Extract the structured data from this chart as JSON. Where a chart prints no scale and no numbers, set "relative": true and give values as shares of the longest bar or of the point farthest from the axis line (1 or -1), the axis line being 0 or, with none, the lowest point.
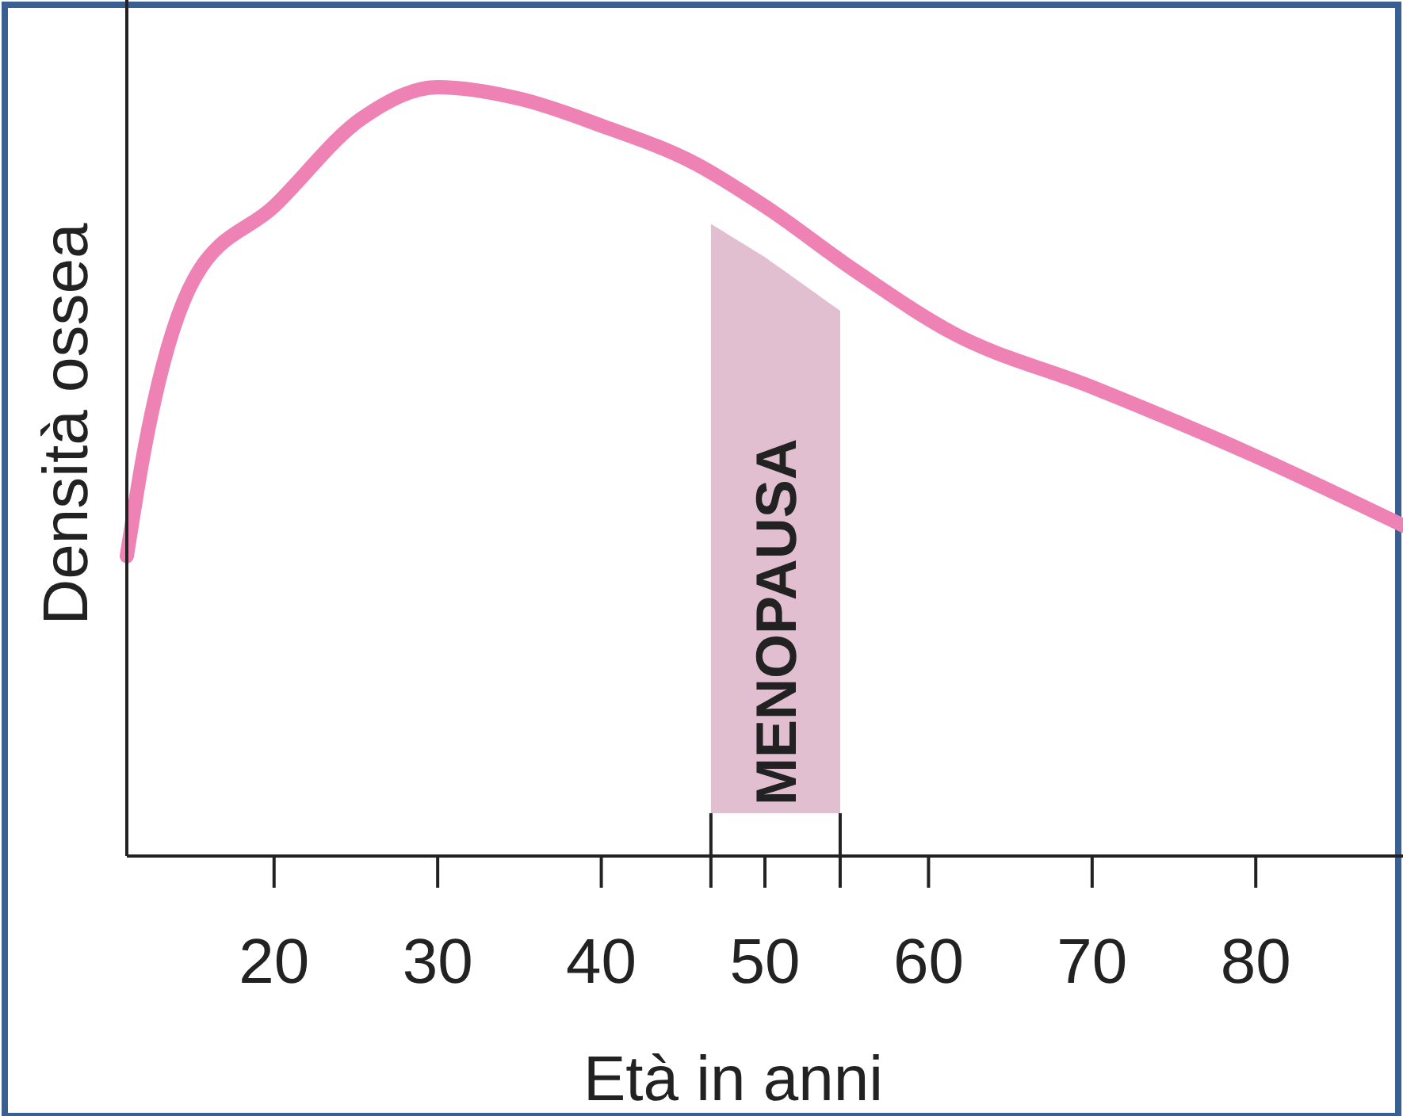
{
  "chart_data": {
    "type": "line",
    "xlabel": "Età in anni",
    "ylabel": "Densità ossea",
    "relative": true,
    "x": [
      11,
      12,
      15.1,
      20,
      25.4,
      30,
      35,
      40,
      45.8,
      50,
      55.6,
      61.5,
      70,
      80,
      89
    ],
    "series": [
      {
        "color": "#ee82b4",
        "values": [
          0.39,
          0.52,
          0.75,
          0.845,
          0.96,
          1,
          0.985,
          0.95,
          0.9,
          0.845,
          0.76,
          0.68,
          0.61,
          0.52,
          0.43
        ]
      }
    ],
    "xlim": [
      11,
      89
    ],
    "xticks": [
      20,
      30,
      40,
      50,
      60,
      70,
      80
    ],
    "bands": [
      {
        "axis": "x",
        "from": 46.7,
        "to": 54.6,
        "label": "MENOPAUSA",
        "color": "#e2bfd0"
      }
    ],
    "grid": false,
    "marker": "none",
    "line_style": "solid"
  }
}
